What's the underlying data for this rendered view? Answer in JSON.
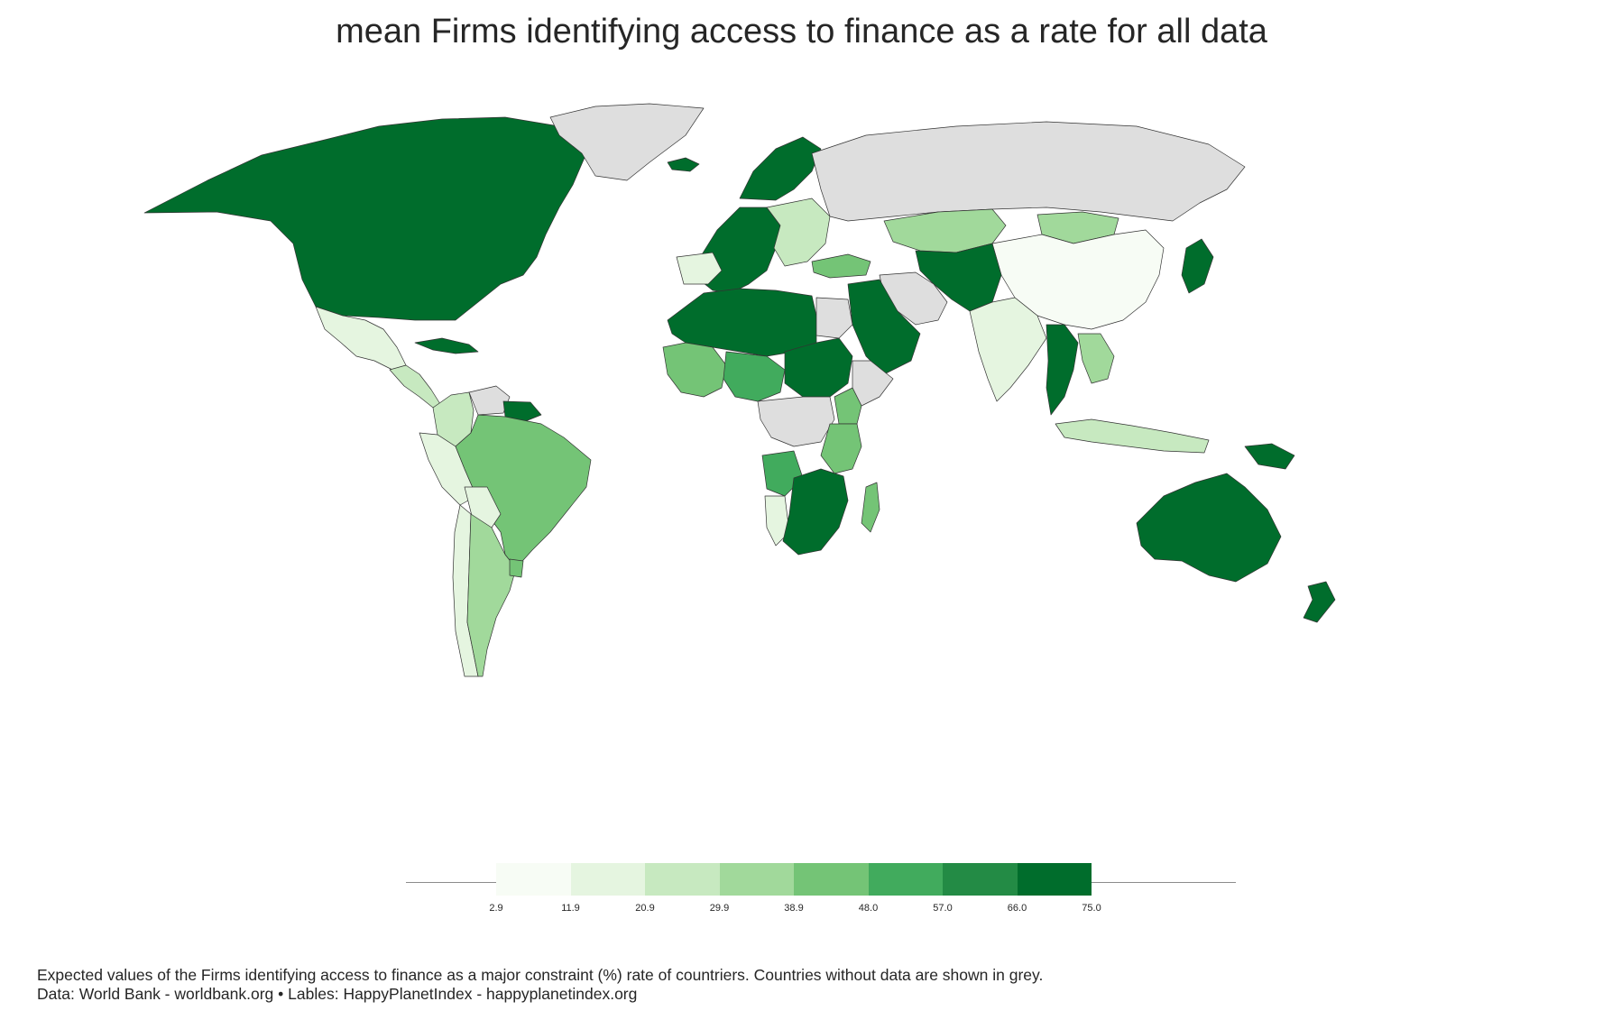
{
  "title": "mean Firms identifying access to finance as a rate for all data",
  "legend": {
    "ticks": [
      "2.9",
      "11.9",
      "20.9",
      "29.9",
      "38.9",
      "48.0",
      "57.0",
      "66.0",
      "75.0"
    ],
    "colors": [
      "#f7fcf5",
      "#e5f5e0",
      "#c7e9c0",
      "#a1d99b",
      "#74c476",
      "#41ab5d",
      "#238b45",
      "#006d2c"
    ]
  },
  "colors": {
    "no_data": "#dedede",
    "border": "#333333",
    "background": "#ffffff"
  },
  "caption": {
    "line1": "Expected values of the Firms identifying access to finance as a major constraint (%) rate of countriers. Countries without data are shown in grey.",
    "line2": "Data: World Bank - worldbank.org • Lables: HappyPlanetIndex - happyplanetindex.org"
  },
  "regions": [
    {
      "name": "north-america",
      "color": "#006d2c"
    },
    {
      "name": "greenland",
      "color": "#dedede"
    },
    {
      "name": "mexico",
      "color": "#e5f5e0"
    },
    {
      "name": "central-america",
      "color": "#c7e9c0"
    },
    {
      "name": "caribbean",
      "color": "#006d2c"
    },
    {
      "name": "colombia",
      "color": "#c7e9c0"
    },
    {
      "name": "venezuela",
      "color": "#dedede"
    },
    {
      "name": "guianas",
      "color": "#006d2c"
    },
    {
      "name": "peru",
      "color": "#e5f5e0"
    },
    {
      "name": "brazil",
      "color": "#74c476"
    },
    {
      "name": "bolivia",
      "color": "#e5f5e0"
    },
    {
      "name": "chile",
      "color": "#e5f5e0"
    },
    {
      "name": "argentina",
      "color": "#a1d99b"
    },
    {
      "name": "uruguay",
      "color": "#74c476"
    },
    {
      "name": "europe-west",
      "color": "#006d2c"
    },
    {
      "name": "scandinavia",
      "color": "#006d2c"
    },
    {
      "name": "europe-east",
      "color": "#c7e9c0"
    },
    {
      "name": "spain",
      "color": "#e5f5e0"
    },
    {
      "name": "turkey",
      "color": "#74c476"
    },
    {
      "name": "russia",
      "color": "#dedede"
    },
    {
      "name": "kazakhstan",
      "color": "#a1d99b"
    },
    {
      "name": "mongolia",
      "color": "#a1d99b"
    },
    {
      "name": "china",
      "color": "#f7fcf5"
    },
    {
      "name": "central-asia",
      "color": "#006d2c"
    },
    {
      "name": "iran",
      "color": "#dedede"
    },
    {
      "name": "arabia",
      "color": "#006d2c"
    },
    {
      "name": "india",
      "color": "#e5f5e0"
    },
    {
      "name": "southeast-asia",
      "color": "#006d2c"
    },
    {
      "name": "indochina",
      "color": "#a1d99b"
    },
    {
      "name": "indonesia",
      "color": "#c7e9c0"
    },
    {
      "name": "japan",
      "color": "#006d2c"
    },
    {
      "name": "north-africa",
      "color": "#006d2c"
    },
    {
      "name": "egypt",
      "color": "#dedede"
    },
    {
      "name": "west-africa",
      "color": "#74c476"
    },
    {
      "name": "sahel",
      "color": "#41ab5d"
    },
    {
      "name": "chad-sudan",
      "color": "#006d2c"
    },
    {
      "name": "horn-africa",
      "color": "#dedede"
    },
    {
      "name": "ethiopia",
      "color": "#74c476"
    },
    {
      "name": "central-africa",
      "color": "#dedede"
    },
    {
      "name": "angola",
      "color": "#41ab5d"
    },
    {
      "name": "east-africa",
      "color": "#74c476"
    },
    {
      "name": "southern-africa",
      "color": "#006d2c"
    },
    {
      "name": "namibia",
      "color": "#e5f5e0"
    },
    {
      "name": "madagascar",
      "color": "#74c476"
    },
    {
      "name": "australia",
      "color": "#006d2c"
    },
    {
      "name": "new-zealand",
      "color": "#006d2c"
    },
    {
      "name": "papua-new-guinea",
      "color": "#006d2c"
    },
    {
      "name": "iceland",
      "color": "#006d2c"
    }
  ]
}
